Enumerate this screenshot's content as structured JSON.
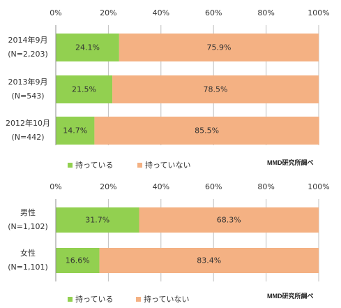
{
  "chart_data": [
    {
      "type": "bar",
      "orientation": "horizontal",
      "stacked": true,
      "categories": [
        [
          "2014年9月",
          "(N=2,203)"
        ],
        [
          "2013年9月",
          "(N=543)"
        ],
        [
          "2012年10月",
          "(N=442)"
        ]
      ],
      "series": [
        {
          "name": "持っている",
          "values": [
            24.1,
            21.5,
            14.7
          ],
          "labels": [
            "24.1%",
            "21.5%",
            "14.7%"
          ],
          "color": "#92D050"
        },
        {
          "name": "持っていない",
          "values": [
            75.9,
            78.5,
            85.5
          ],
          "labels": [
            "75.9%",
            "78.5%",
            "85.5%"
          ],
          "color": "#F4B183"
        }
      ],
      "xticks": [
        "0%",
        "20%",
        "40%",
        "60%",
        "80%",
        "100%"
      ],
      "xlim": [
        0,
        100
      ],
      "grid": true,
      "legend": "bottom-left",
      "source": "MMD研究所調べ"
    },
    {
      "type": "bar",
      "orientation": "horizontal",
      "stacked": true,
      "categories": [
        [
          "男性",
          "(N=1,102)"
        ],
        [
          "女性",
          "(N=1,101)"
        ]
      ],
      "series": [
        {
          "name": "持っている",
          "values": [
            31.7,
            16.6
          ],
          "labels": [
            "31.7%",
            "16.6%"
          ],
          "color": "#92D050"
        },
        {
          "name": "持っていない",
          "values": [
            68.3,
            83.4
          ],
          "labels": [
            "68.3%",
            "83.4%"
          ],
          "color": "#F4B183"
        }
      ],
      "xticks": [
        "0%",
        "20%",
        "40%",
        "60%",
        "80%",
        "100%"
      ],
      "xlim": [
        0,
        100
      ],
      "grid": true,
      "legend": "bottom-left",
      "source": "MMD研究所調べ"
    }
  ]
}
